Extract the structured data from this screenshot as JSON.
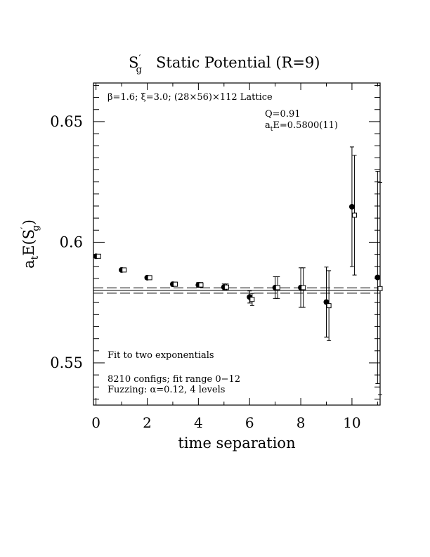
{
  "chart_data": {
    "type": "scatter",
    "title_main": "S",
    "title_sub": "g",
    "title_rest": "Static Potential (R=9)",
    "xlabel": "time separation",
    "ylabel": {
      "a": "a",
      "t": "t",
      "e": "E(S",
      "g": "g",
      "close": ")"
    },
    "xlim": [
      -0.1,
      11.1
    ],
    "ylim": [
      0.5325,
      0.666
    ],
    "x_ticks": [
      0,
      2,
      4,
      6,
      8,
      10
    ],
    "x_tick_labels": [
      "0",
      "2",
      "4",
      "6",
      "8",
      "10"
    ],
    "y_ticks": [
      0.55,
      0.6,
      0.65
    ],
    "y_tick_labels": [
      "0.55",
      "0.6",
      "0.65"
    ],
    "grid": false,
    "annotations": {
      "lattice": "β=1.6; ξ=3.0; (28×56)×112 Lattice",
      "q": "Q=0.91",
      "energy_prefix": "a",
      "energy_sub": "t",
      "energy_rest": "E=0.5800(11)",
      "fit": "Fit to two exponentials",
      "configs": "8210 configs; fit range 0−12",
      "fuzzing": "Fuzzing: α=0.12, 4 levels"
    },
    "fit_band": {
      "center": 0.58,
      "upper": 0.5811,
      "lower": 0.5789
    },
    "series": [
      {
        "marker": "filled-circle",
        "points": [
          {
            "x": 0,
            "y": 0.5942,
            "err": 0.0005
          },
          {
            "x": 1,
            "y": 0.5885,
            "err": 0.0006
          },
          {
            "x": 2,
            "y": 0.5853,
            "err": 0.0007
          },
          {
            "x": 3,
            "y": 0.5826,
            "err": 0.0008
          },
          {
            "x": 4,
            "y": 0.5823,
            "err": 0.001
          },
          {
            "x": 5,
            "y": 0.5814,
            "err": 0.0013
          },
          {
            "x": 6,
            "y": 0.5773,
            "err": 0.0025
          },
          {
            "x": 7,
            "y": 0.5812,
            "err": 0.0045
          },
          {
            "x": 8,
            "y": 0.5812,
            "err": 0.0082
          },
          {
            "x": 9,
            "y": 0.5752,
            "err": 0.0145
          },
          {
            "x": 10,
            "y": 0.6147,
            "err": 0.0248
          },
          {
            "x": 11,
            "y": 0.5854,
            "err": 0.044
          }
        ]
      },
      {
        "marker": "open-square",
        "points": [
          {
            "x": 0.1,
            "y": 0.5942,
            "err": 0.0005
          },
          {
            "x": 1.1,
            "y": 0.5885,
            "err": 0.0006
          },
          {
            "x": 2.1,
            "y": 0.5853,
            "err": 0.0007
          },
          {
            "x": 3.1,
            "y": 0.5826,
            "err": 0.0008
          },
          {
            "x": 4.1,
            "y": 0.5823,
            "err": 0.001
          },
          {
            "x": 5.1,
            "y": 0.5814,
            "err": 0.0013
          },
          {
            "x": 6.1,
            "y": 0.5763,
            "err": 0.0025
          },
          {
            "x": 7.1,
            "y": 0.5812,
            "err": 0.0045
          },
          {
            "x": 8.1,
            "y": 0.5812,
            "err": 0.0082
          },
          {
            "x": 9.1,
            "y": 0.5737,
            "err": 0.0145
          },
          {
            "x": 10.1,
            "y": 0.6112,
            "err": 0.0248
          },
          {
            "x": 11.1,
            "y": 0.5808,
            "err": 0.044
          }
        ]
      }
    ]
  }
}
